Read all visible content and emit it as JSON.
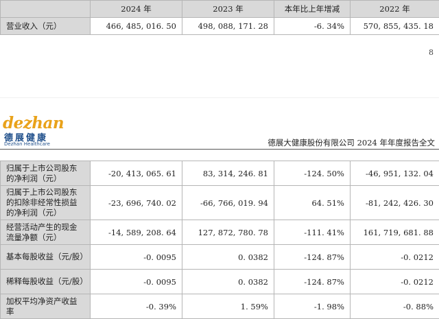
{
  "top_table": {
    "headers": [
      "",
      "2024 年",
      "2023 年",
      "本年比上年增减",
      "2022 年"
    ],
    "rows": [
      [
        "营业收入（元）",
        "466, 485, 016. 50",
        "498, 088, 171. 28",
        "-6. 34%",
        "570, 855, 435. 18"
      ]
    ]
  },
  "page_number": "8",
  "header": {
    "logo_word": "dezhan",
    "logo_cn": "德展健康",
    "logo_en": "Dezhan Healthcare",
    "title": "德展大健康股份有限公司 2024 年年度报告全文"
  },
  "main_table": {
    "rows": [
      [
        "归属于上市公司股东的净利润（元）",
        "-20, 413, 065. 61",
        "83, 314, 246. 81",
        "-124. 50%",
        "-46, 951, 132. 04"
      ],
      [
        "归属于上市公司股东的扣除非经常性损益的净利润（元）",
        "-23, 696, 740. 02",
        "-66, 766, 019. 94",
        "64. 51%",
        "-81, 242, 426. 30"
      ],
      [
        "经营活动产生的现金流量净额（元）",
        "-14, 589, 208. 64",
        "127, 872, 780. 78",
        "-111. 41%",
        "161, 719, 681. 88"
      ],
      [
        "基本每股收益（元/股）",
        "-0. 0095",
        "0. 0382",
        "-124. 87%",
        "-0. 0212"
      ],
      [
        "稀释每股收益（元/股）",
        "-0. 0095",
        "0. 0382",
        "-124. 87%",
        "-0. 0212"
      ],
      [
        "加权平均净资产收益率",
        "-0. 39%",
        "1. 59%",
        "-1. 98%",
        "-0. 88%"
      ]
    ]
  }
}
